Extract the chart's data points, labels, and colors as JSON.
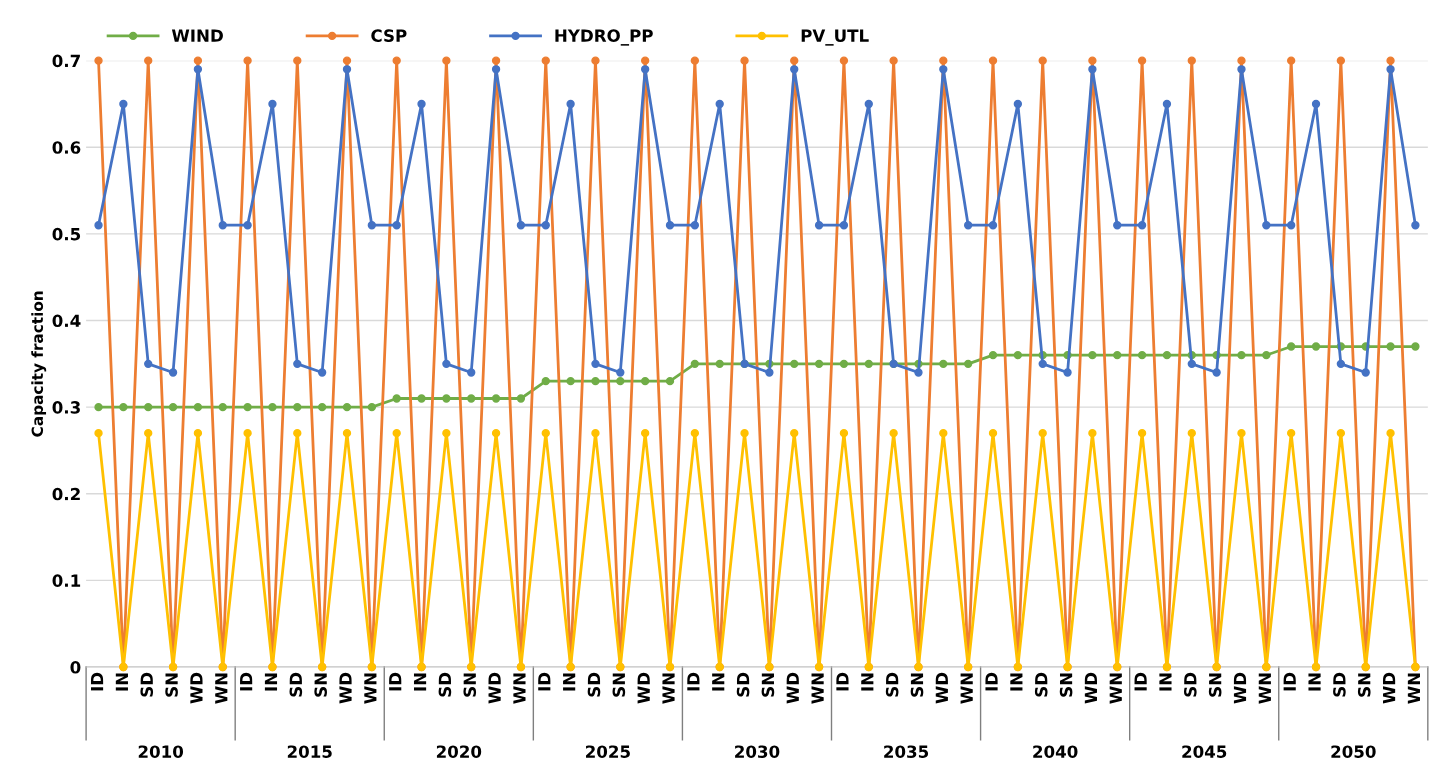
{
  "chart_data": {
    "type": "line",
    "ylabel": "Capacity fraction",
    "categories": [
      "ID",
      "IN",
      "SD",
      "SN",
      "WD",
      "WN",
      "ID",
      "IN",
      "SD",
      "SN",
      "WD",
      "WN",
      "ID",
      "IN",
      "SD",
      "SN",
      "WD",
      "WN",
      "ID",
      "IN",
      "SD",
      "SN",
      "WD",
      "WN",
      "ID",
      "IN",
      "SD",
      "SN",
      "WD",
      "WN",
      "ID",
      "IN",
      "SD",
      "SN",
      "WD",
      "WN",
      "ID",
      "IN",
      "SD",
      "SN",
      "WD",
      "WN",
      "ID",
      "IN",
      "SD",
      "SN",
      "WD",
      "WN",
      "ID",
      "IN",
      "SD",
      "SN",
      "WD",
      "WN"
    ],
    "annotations": [
      "2010",
      "2015",
      "2020",
      "2025",
      "2030",
      "2035",
      "2040",
      "2045",
      "2050"
    ],
    "series": [
      {
        "name": "WIND",
        "color": "#70ad47",
        "values": [
          0.3,
          0.3,
          0.3,
          0.3,
          0.3,
          0.3,
          0.3,
          0.3,
          0.3,
          0.3,
          0.3,
          0.3,
          0.31,
          0.31,
          0.31,
          0.31,
          0.31,
          0.31,
          0.33,
          0.33,
          0.33,
          0.33,
          0.33,
          0.33,
          0.35,
          0.35,
          0.35,
          0.35,
          0.35,
          0.35,
          0.35,
          0.35,
          0.35,
          0.35,
          0.35,
          0.35,
          0.36,
          0.36,
          0.36,
          0.36,
          0.36,
          0.36,
          0.36,
          0.36,
          0.36,
          0.36,
          0.36,
          0.36,
          0.37,
          0.37,
          0.37,
          0.37,
          0.37,
          0.37
        ]
      },
      {
        "name": "CSP",
        "color": "#ed7d31",
        "values": [
          0.7,
          0,
          0.7,
          0,
          0.7,
          0,
          0.7,
          0,
          0.7,
          0,
          0.7,
          0,
          0.7,
          0,
          0.7,
          0,
          0.7,
          0,
          0.7,
          0,
          0.7,
          0,
          0.7,
          0,
          0.7,
          0,
          0.7,
          0,
          0.7,
          0,
          0.7,
          0,
          0.7,
          0,
          0.7,
          0,
          0.7,
          0,
          0.7,
          0,
          0.7,
          0,
          0.7,
          0,
          0.7,
          0,
          0.7,
          0,
          0.7,
          0,
          0.7,
          0,
          0.7,
          0
        ]
      },
      {
        "name": "HYDRO_PP",
        "color": "#4472c4",
        "values": [
          0.51,
          0.65,
          0.35,
          0.34,
          0.69,
          0.51,
          0.51,
          0.65,
          0.35,
          0.34,
          0.69,
          0.51,
          0.51,
          0.65,
          0.35,
          0.34,
          0.69,
          0.51,
          0.51,
          0.65,
          0.35,
          0.34,
          0.69,
          0.51,
          0.51,
          0.65,
          0.35,
          0.34,
          0.69,
          0.51,
          0.51,
          0.65,
          0.35,
          0.34,
          0.69,
          0.51,
          0.51,
          0.65,
          0.35,
          0.34,
          0.69,
          0.51,
          0.51,
          0.65,
          0.35,
          0.34,
          0.69,
          0.51,
          0.51,
          0.65,
          0.35,
          0.34,
          0.69,
          0.51
        ]
      },
      {
        "name": "PV_UTL",
        "color": "#ffc000",
        "values": [
          0.27,
          0,
          0.27,
          0,
          0.27,
          0,
          0.27,
          0,
          0.27,
          0,
          0.27,
          0,
          0.27,
          0,
          0.27,
          0,
          0.27,
          0,
          0.27,
          0,
          0.27,
          0,
          0.27,
          0,
          0.27,
          0,
          0.27,
          0,
          0.27,
          0,
          0.27,
          0,
          0.27,
          0,
          0.27,
          0,
          0.27,
          0,
          0.27,
          0,
          0.27,
          0,
          0.27,
          0,
          0.27,
          0,
          0.27,
          0,
          0.27,
          0,
          0.27,
          0,
          0.27,
          0
        ]
      }
    ],
    "ylim": [
      0,
      0.7
    ],
    "yticks": [
      0,
      0.1,
      0.2,
      0.3,
      0.4,
      0.5,
      0.6,
      0.7
    ],
    "grid": "y",
    "legend": "top",
    "marker": "circle",
    "line_style": "solid"
  }
}
